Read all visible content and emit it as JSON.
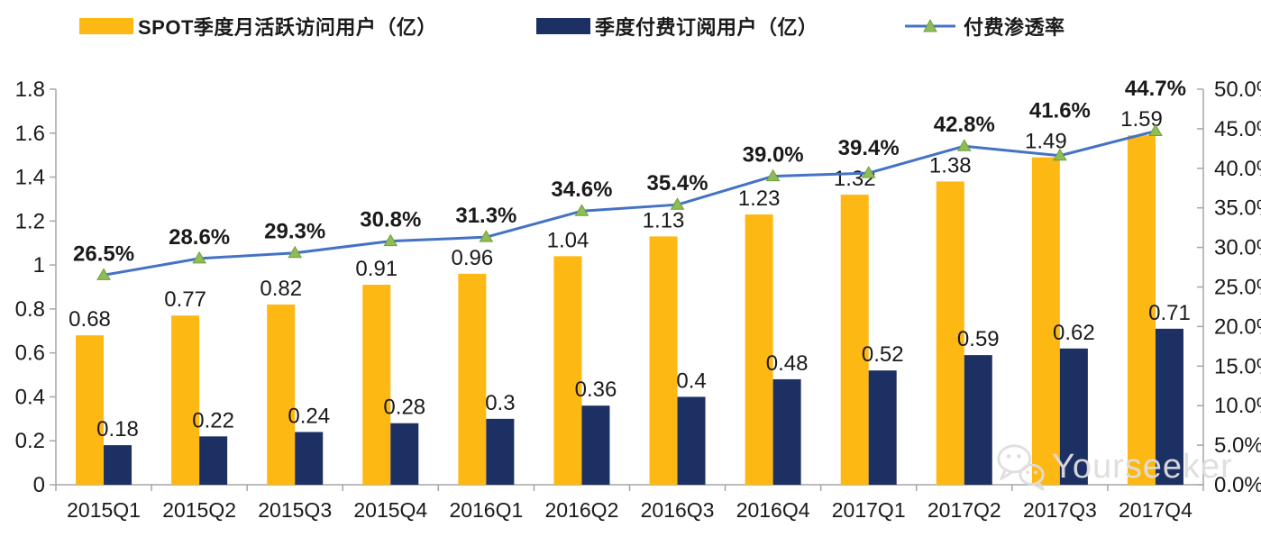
{
  "watermark": {
    "text": "Yourseeker",
    "icon": "wechat-icon"
  },
  "colors": {
    "mau_bar": "#FDB813",
    "subs_bar": "#1D3064",
    "line": "#4472C4",
    "marker_fill": "#8FBC56",
    "marker_stroke": "#6FA03A",
    "axis": "#A6A6A6",
    "text": "#1A1A1A",
    "watermark": "#DEDEDE"
  },
  "chart_data": {
    "type": "bar",
    "subtype": "combo-bar-line",
    "title": "",
    "legend_position": "top",
    "grid": false,
    "categories": [
      "2015Q1",
      "2015Q2",
      "2015Q3",
      "2015Q4",
      "2016Q1",
      "2016Q2",
      "2016Q3",
      "2016Q4",
      "2017Q1",
      "2017Q2",
      "2017Q3",
      "2017Q4"
    ],
    "series": [
      {
        "name": "SPOT季度月活跃访问用户（亿）",
        "type": "bar",
        "axis": "left",
        "values": [
          0.68,
          0.77,
          0.82,
          0.91,
          0.96,
          1.04,
          1.13,
          1.23,
          1.32,
          1.38,
          1.49,
          1.59
        ],
        "labels": [
          "0.68",
          "0.77",
          "0.82",
          "0.91",
          "0.96",
          "1.04",
          "1.13",
          "1.23",
          "1.32",
          "1.38",
          "1.49",
          "1.59"
        ]
      },
      {
        "name": "季度付费订阅用户（亿）",
        "type": "bar",
        "axis": "left",
        "values": [
          0.18,
          0.22,
          0.24,
          0.28,
          0.3,
          0.36,
          0.4,
          0.48,
          0.52,
          0.59,
          0.62,
          0.71
        ],
        "labels": [
          "0.18",
          "0.22",
          "0.24",
          "0.28",
          "0.3",
          "0.36",
          "0.4",
          "0.48",
          "0.52",
          "0.59",
          "0.62",
          "0.71"
        ]
      },
      {
        "name": "付费渗透率",
        "type": "line",
        "axis": "right",
        "values": [
          26.5,
          28.6,
          29.3,
          30.8,
          31.3,
          34.6,
          35.4,
          39.0,
          39.4,
          42.8,
          41.6,
          44.7
        ],
        "labels": [
          "26.5%",
          "28.6%",
          "29.3%",
          "30.8%",
          "31.3%",
          "34.6%",
          "35.4%",
          "39.0%",
          "39.4%",
          "42.8%",
          "41.6%",
          "44.7%"
        ]
      }
    ],
    "left_axis": {
      "min": 0,
      "max": 1.8,
      "ticks": [
        "0",
        "0.2",
        "0.4",
        "0.6",
        "0.8",
        "1",
        "1.2",
        "1.4",
        "1.6",
        "1.8"
      ]
    },
    "right_axis": {
      "min": 0,
      "max": 50,
      "ticks": [
        "0.0%",
        "5.0%",
        "10.0%",
        "15.0%",
        "20.0%",
        "25.0%",
        "30.0%",
        "35.0%",
        "40.0%",
        "45.0%",
        "50.0%"
      ]
    }
  }
}
